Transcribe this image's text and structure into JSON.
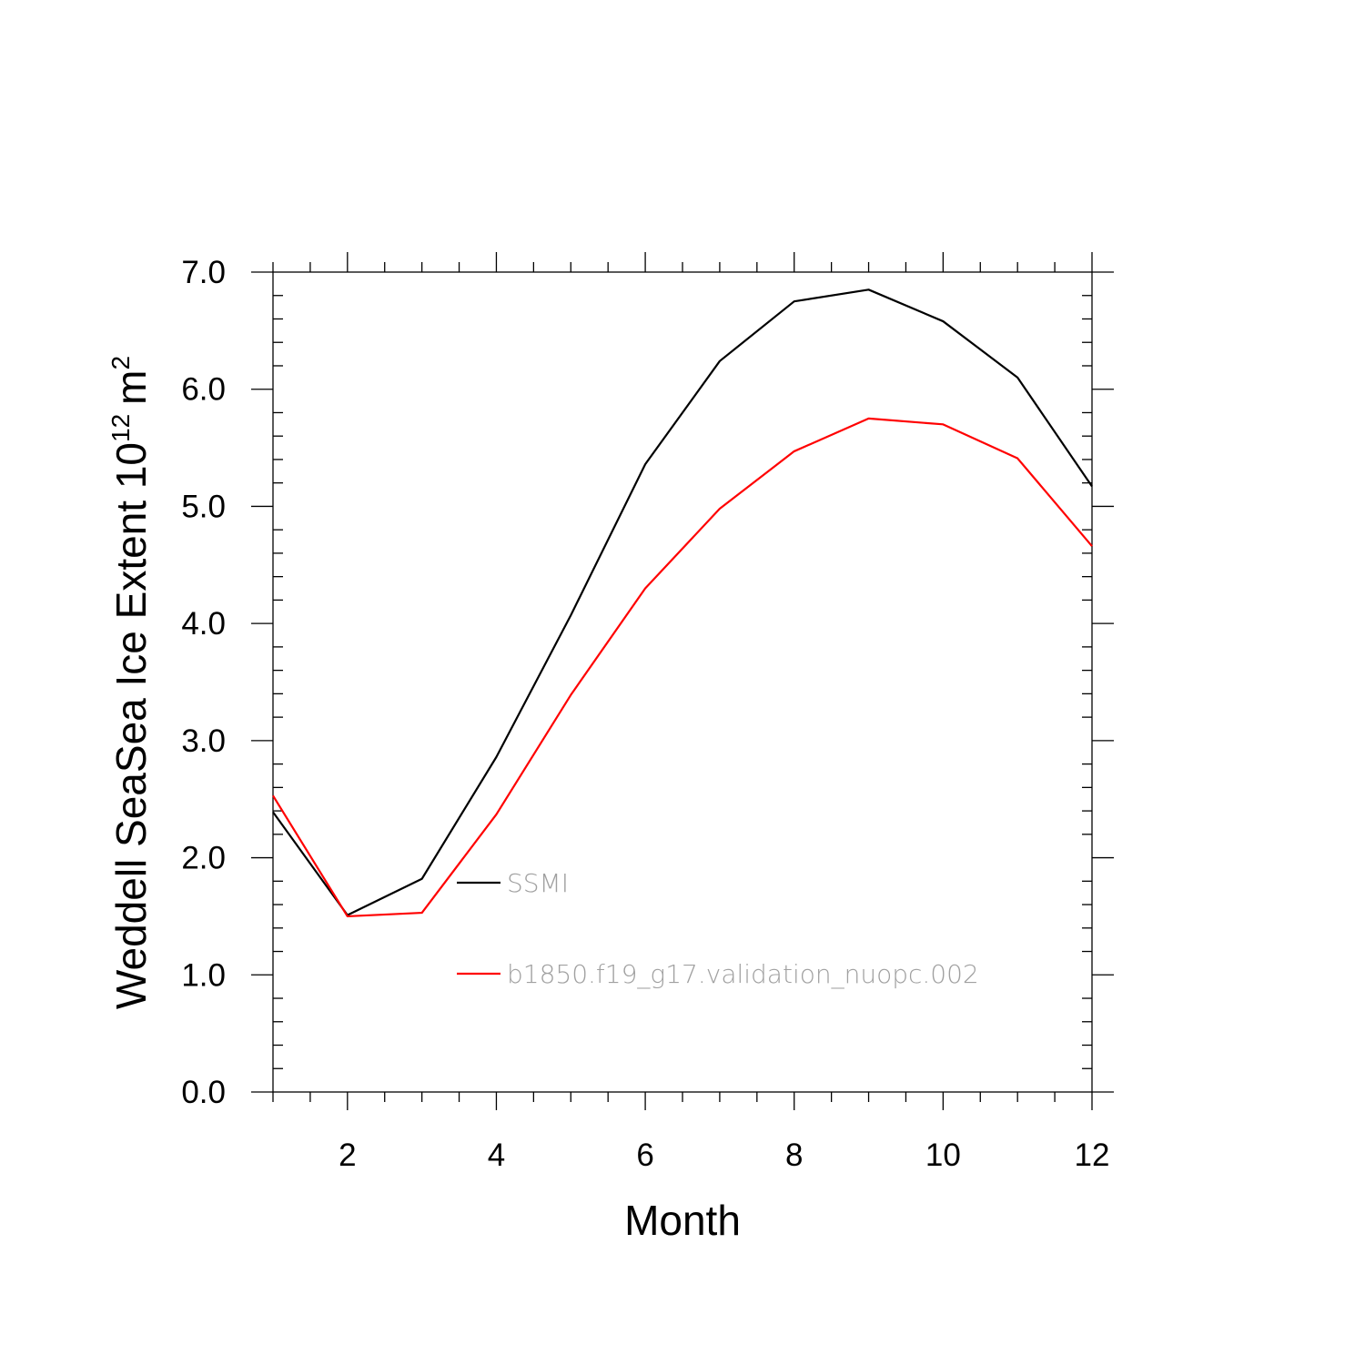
{
  "chart_data": {
    "type": "line",
    "title": "",
    "xlabel": "Month",
    "ylabel": "Weddell SeaSea Ice Extent 10",
    "ylabel_sup_exp": "12",
    "ylabel_unit": "m",
    "ylabel_unit_sup": "2",
    "xlim": [
      1,
      12
    ],
    "ylim": [
      0,
      7
    ],
    "xticks": [
      2,
      4,
      6,
      8,
      10,
      12
    ],
    "xtick_labels": [
      "2",
      "4",
      "6",
      "8",
      "10",
      "12"
    ],
    "yticks": [
      0,
      1,
      2,
      3,
      4,
      5,
      6,
      7
    ],
    "ytick_labels": [
      "0.0",
      "1.0",
      "2.0",
      "3.0",
      "4.0",
      "5.0",
      "6.0",
      "7.0"
    ],
    "x": [
      1,
      2,
      3,
      4,
      5,
      6,
      7,
      8,
      9,
      10,
      11,
      12
    ],
    "series": [
      {
        "name": "SSMI",
        "color": "#000000",
        "values": [
          2.39,
          1.51,
          1.82,
          2.86,
          4.07,
          5.36,
          6.24,
          6.75,
          6.85,
          6.58,
          6.1,
          5.17
        ]
      },
      {
        "name": "b1850.f19_g17.validation_nuopc.002",
        "color": "#ff0000",
        "values": [
          2.53,
          1.5,
          1.53,
          2.37,
          3.39,
          4.3,
          4.98,
          5.47,
          5.75,
          5.7,
          5.41,
          4.66
        ]
      }
    ],
    "legend_position": "inside-lower-middle",
    "grid": false
  }
}
